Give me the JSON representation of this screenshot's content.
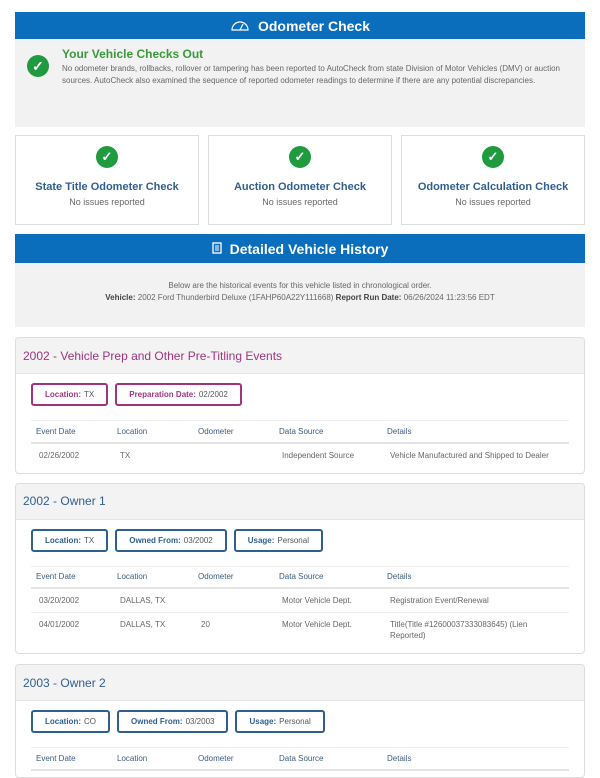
{
  "colors": {
    "brand": "#0a6ebd",
    "success": "#1f9a3f",
    "prep": "#a0357e",
    "owner": "#2f5f8f"
  },
  "odometer": {
    "title": "Odometer Check",
    "icon": "speedometer-icon",
    "summary_title": "Your Vehicle Checks Out",
    "summary_text": "No odometer brands, rollbacks, rollover or tampering has been reported to AutoCheck from state Division of Motor Vehicles (DMV) or auction sources. AutoCheck also examined the sequence of reported odometer readings to determine if there are any potential discrepancies.",
    "cards": [
      {
        "title": "State Title Odometer Check",
        "status": "No issues reported"
      },
      {
        "title": "Auction Odometer Check",
        "status": "No issues reported"
      },
      {
        "title": "Odometer Calculation Check",
        "status": "No issues reported"
      }
    ]
  },
  "history": {
    "title": "Detailed Vehicle History",
    "icon": "document-icon",
    "intro": "Below are the historical events for this vehicle listed in chronological order.",
    "vehicle_label": "Vehicle:",
    "vehicle": "2002 Ford Thunderbird Deluxe (1FAHP60A22Y111668)",
    "run_label": "Report Run Date:",
    "run_date": "06/26/2024 11:23:56 EDT",
    "columns": [
      "Event Date",
      "Location",
      "Odometer",
      "Data Source",
      "Details"
    ],
    "sections": [
      {
        "title": "2002 - Vehicle Prep and Other Pre-Titling Events",
        "badges": [
          {
            "label": "Location:",
            "value": "TX"
          },
          {
            "label": "Preparation Date:",
            "value": "02/2002"
          }
        ],
        "rows": [
          [
            "02/26/2002",
            "TX",
            "",
            "Independent Source",
            "Vehicle Manufactured and Shipped to Dealer"
          ]
        ]
      },
      {
        "title": "2002 - Owner  1",
        "badges": [
          {
            "label": "Location:",
            "value": "TX"
          },
          {
            "label": "Owned From:",
            "value": "03/2002"
          },
          {
            "label": "Usage:",
            "value": "Personal"
          }
        ],
        "rows": [
          [
            "03/20/2002",
            "DALLAS, TX",
            "",
            "Motor Vehicle Dept.",
            "Registration Event/Renewal"
          ],
          [
            "04/01/2002",
            "DALLAS, TX",
            "20",
            "Motor Vehicle Dept.",
            "Title(Title #12600037333083645) (Lien Reported)"
          ]
        ]
      },
      {
        "title": "2003 - Owner  2",
        "badges": [
          {
            "label": "Location:",
            "value": "CO"
          },
          {
            "label": "Owned From:",
            "value": "03/2003"
          },
          {
            "label": "Usage:",
            "value": "Personal"
          }
        ],
        "rows": []
      }
    ]
  }
}
